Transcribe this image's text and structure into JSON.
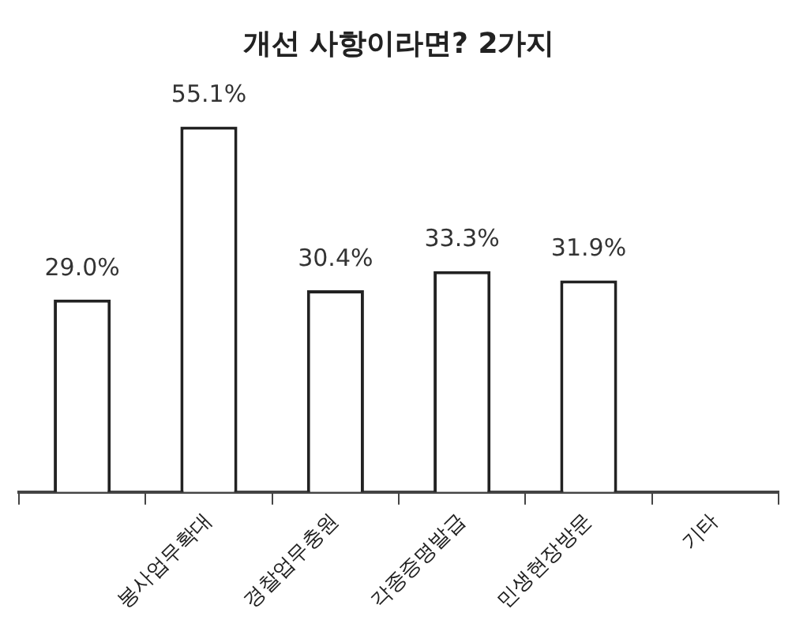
{
  "chart_data": {
    "type": "bar",
    "title": "개선 사항이라면? 2가지",
    "categories": [
      null,
      "봉사업무확대",
      "경찰업무충원",
      "각종증명발급",
      "민생현장방문",
      "기타"
    ],
    "values": [
      29.0,
      55.1,
      30.4,
      33.3,
      31.9,
      null
    ],
    "value_labels": [
      "29.0%",
      "55.1%",
      "30.4%",
      "33.3%",
      "31.9%",
      null
    ],
    "color": "#ffffff",
    "tick_labels": "x",
    "grid": false,
    "legend": false
  }
}
